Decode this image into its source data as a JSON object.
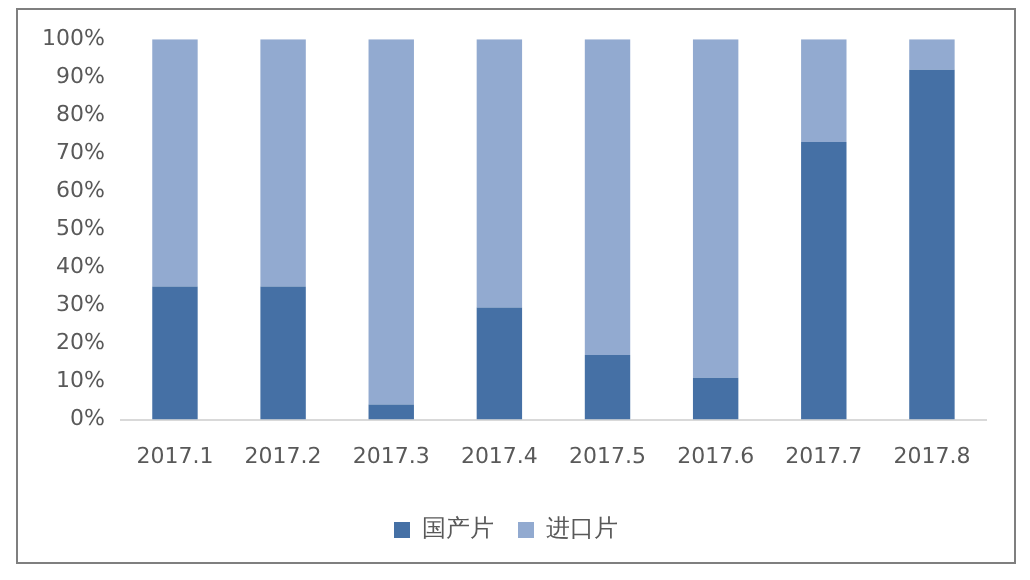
{
  "chart_data": {
    "type": "bar",
    "stacked": true,
    "categories": [
      "2017.1",
      "2017.2",
      "2017.3",
      "2017.4",
      "2017.5",
      "2017.6",
      "2017.7",
      "2017.8"
    ],
    "series": [
      {
        "name": "国产片",
        "color": "#4570a5",
        "values": [
          35,
          35,
          4,
          29.5,
          17,
          11,
          73,
          92
        ]
      },
      {
        "name": "进口片",
        "color": "#92aad0",
        "values": [
          65,
          65,
          96,
          70.5,
          83,
          89,
          27,
          8
        ]
      }
    ],
    "ylim": [
      0,
      100
    ],
    "yticks": [
      {
        "value": 0,
        "label": "0%"
      },
      {
        "value": 10,
        "label": "10%"
      },
      {
        "value": 20,
        "label": "20%"
      },
      {
        "value": 30,
        "label": "30%"
      },
      {
        "value": 40,
        "label": "40%"
      },
      {
        "value": 50,
        "label": "50%"
      },
      {
        "value": 60,
        "label": "60%"
      },
      {
        "value": 70,
        "label": "70%"
      },
      {
        "value": 80,
        "label": "80%"
      },
      {
        "value": 90,
        "label": "90%"
      },
      {
        "value": 100,
        "label": "100%"
      }
    ],
    "grid": false,
    "legend": "bottom"
  }
}
